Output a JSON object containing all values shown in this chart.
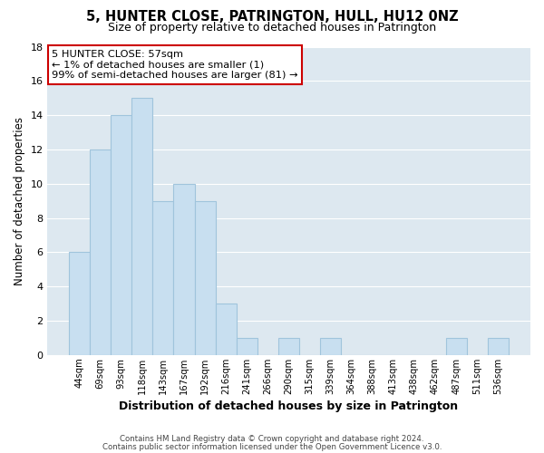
{
  "title": "5, HUNTER CLOSE, PATRINGTON, HULL, HU12 0NZ",
  "subtitle": "Size of property relative to detached houses in Patrington",
  "xlabel": "Distribution of detached houses by size in Patrington",
  "ylabel": "Number of detached properties",
  "bin_labels": [
    "44sqm",
    "69sqm",
    "93sqm",
    "118sqm",
    "143sqm",
    "167sqm",
    "192sqm",
    "216sqm",
    "241sqm",
    "266sqm",
    "290sqm",
    "315sqm",
    "339sqm",
    "364sqm",
    "388sqm",
    "413sqm",
    "438sqm",
    "462sqm",
    "487sqm",
    "511sqm",
    "536sqm"
  ],
  "bin_values": [
    6,
    12,
    14,
    15,
    9,
    10,
    9,
    3,
    1,
    0,
    1,
    0,
    1,
    0,
    0,
    0,
    0,
    0,
    1,
    0,
    1
  ],
  "bar_color": "#c8dff0",
  "bar_edge_color": "#a0c4dc",
  "ylim": [
    0,
    18
  ],
  "yticks": [
    0,
    2,
    4,
    6,
    8,
    10,
    12,
    14,
    16,
    18
  ],
  "annotation_line1": "5 HUNTER CLOSE: 57sqm",
  "annotation_line2": "← 1% of detached houses are smaller (1)",
  "annotation_line3": "99% of semi-detached houses are larger (81) →",
  "annotation_box_color": "#ffffff",
  "annotation_box_edge_color": "#cc0000",
  "footer_line1": "Contains HM Land Registry data © Crown copyright and database right 2024.",
  "footer_line2": "Contains public sector information licensed under the Open Government Licence v3.0.",
  "background_color": "#ffffff",
  "grid_color": "#ffffff",
  "plot_bg_color": "#dde8f0"
}
